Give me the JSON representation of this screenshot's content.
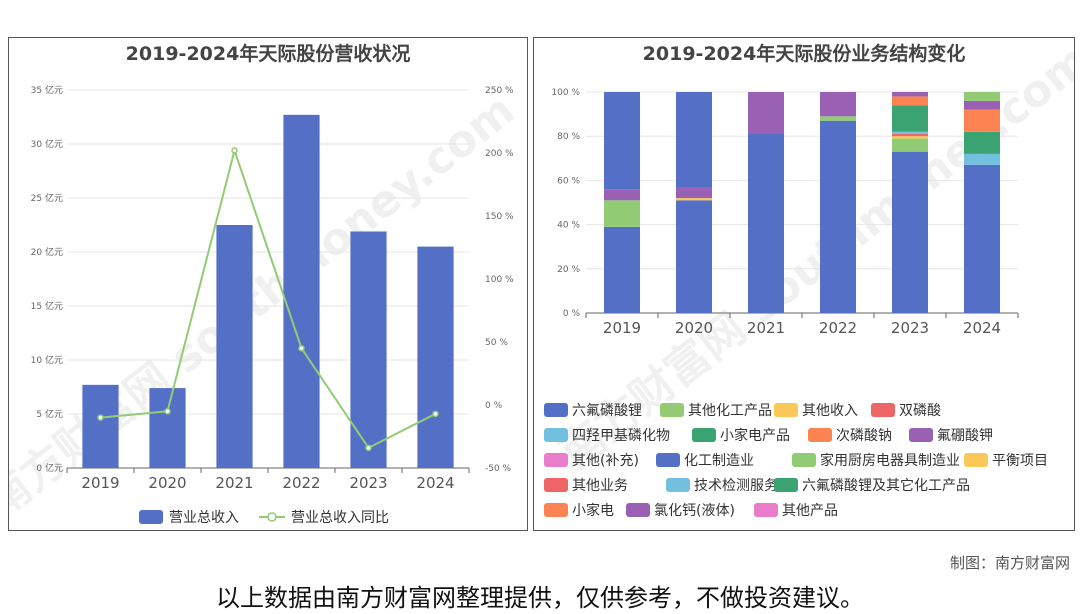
{
  "credit": "制图：南方财富网",
  "disclaimer": "以上数据由南方财富网整理提供，仅供参考，不做投资建议。",
  "watermark": "南方财富网 southmoney.com",
  "chart_data": [
    {
      "type": "bar",
      "title": "2019-2024年天际股份营收状况",
      "categories": [
        "2019",
        "2020",
        "2021",
        "2022",
        "2023",
        "2024"
      ],
      "series": [
        {
          "name": "营业总收入",
          "type": "bar",
          "color": "#5470c6",
          "axis": "left",
          "values": [
            7.7,
            7.4,
            22.5,
            32.7,
            21.9,
            20.5
          ]
        },
        {
          "name": "营业总收入同比",
          "type": "line",
          "color": "#91cc75",
          "axis": "right",
          "values": [
            -10,
            -5,
            202,
            45,
            -34,
            -7
          ]
        }
      ],
      "y_left": {
        "ticks": [
          0,
          5,
          10,
          15,
          20,
          25,
          30,
          35
        ],
        "unit": "亿元",
        "ylim": [
          0,
          35
        ]
      },
      "y_right": {
        "ticks": [
          -50,
          0,
          50,
          100,
          150,
          200,
          250
        ],
        "unit": "%",
        "ylim": [
          -50,
          250
        ]
      },
      "grid": true,
      "legend": "bottom"
    },
    {
      "type": "bar",
      "stacked": true,
      "title": "2019-2024年天际股份业务结构变化",
      "categories": [
        "2019",
        "2020",
        "2021",
        "2022",
        "2023",
        "2024"
      ],
      "y_ticks": [
        0,
        20,
        40,
        60,
        80,
        100
      ],
      "y_unit": "%",
      "ylim": [
        0,
        100
      ],
      "series": [
        {
          "name": "六氟磷酸锂",
          "color": "#5470c6",
          "values": [
            39,
            51,
            0,
            0,
            0,
            67
          ]
        },
        {
          "name": "其他化工产品",
          "color": "#91cc75",
          "values": [
            12,
            0,
            0,
            0,
            0,
            0
          ]
        },
        {
          "name": "其他收入",
          "color": "#fac858",
          "values": [
            0,
            1,
            0,
            0,
            0,
            0
          ]
        },
        {
          "name": "双磷酸",
          "color": "#ee6666",
          "values": [
            0,
            0,
            0,
            0,
            0,
            0
          ]
        },
        {
          "name": "四羟甲基磷化物",
          "color": "#73c0de",
          "values": [
            0,
            0,
            0,
            0,
            0,
            5
          ]
        },
        {
          "name": "小家电产品",
          "color": "#3ba272",
          "values": [
            0,
            0,
            0,
            0,
            0,
            10
          ]
        },
        {
          "name": "次磷酸钠",
          "color": "#fc8452",
          "values": [
            0,
            0,
            0,
            0,
            0,
            10
          ]
        },
        {
          "name": "氟硼酸钾",
          "color": "#9a60b4",
          "values": [
            5,
            5,
            0,
            0,
            0,
            4
          ]
        },
        {
          "name": "其他(补充)",
          "color": "#ea7ccc",
          "values": [
            0,
            0,
            0,
            0,
            0,
            0
          ]
        },
        {
          "name": "化工制造业",
          "color": "#5470c6",
          "values": [
            44,
            43,
            81,
            87,
            73,
            0
          ]
        },
        {
          "name": "家用厨房电器具制造业",
          "color": "#91cc75",
          "values": [
            0,
            0,
            0,
            2,
            6,
            4
          ]
        },
        {
          "name": "平衡项目",
          "color": "#fac858",
          "values": [
            0,
            0,
            0,
            0,
            1,
            0
          ]
        },
        {
          "name": "其他业务",
          "color": "#ee6666",
          "values": [
            0,
            0,
            0,
            0,
            1,
            0
          ]
        },
        {
          "name": "技术检测服务",
          "color": "#73c0de",
          "values": [
            0,
            0,
            0,
            0,
            1,
            0
          ]
        },
        {
          "name": "六氟磷酸锂及其它化工产品",
          "color": "#3ba272",
          "values": [
            0,
            0,
            0,
            0,
            12,
            0
          ]
        },
        {
          "name": "小家电",
          "color": "#fc8452",
          "values": [
            0,
            0,
            0,
            0,
            4,
            0
          ]
        },
        {
          "name": "氯化钙(液体)",
          "color": "#9a60b4",
          "values": [
            0,
            0,
            19,
            11,
            2,
            0
          ]
        },
        {
          "name": "其他产品",
          "color": "#ea7ccc",
          "values": [
            0,
            0,
            0,
            0,
            0,
            0
          ]
        }
      ],
      "legend": "bottom"
    }
  ]
}
